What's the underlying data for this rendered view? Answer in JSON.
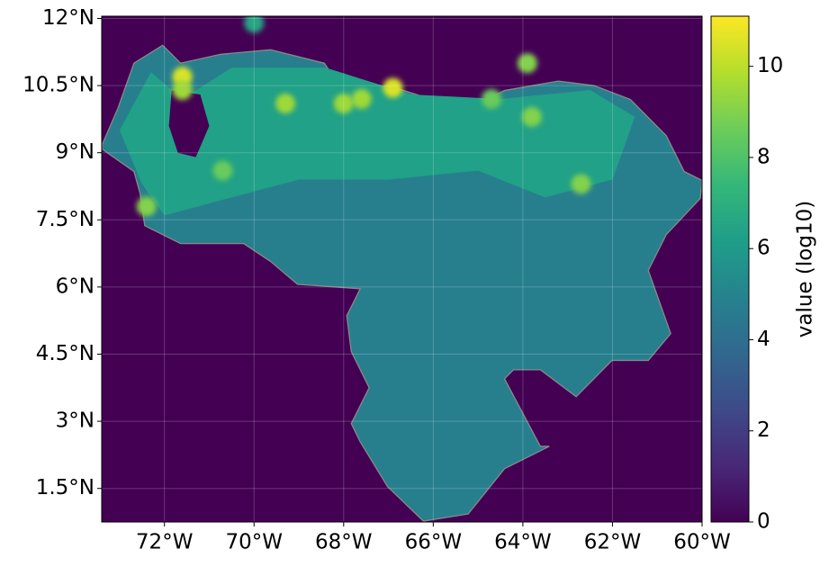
{
  "chart_data": {
    "type": "map",
    "xlim": [
      -73.4,
      -60
    ],
    "ylim": [
      0.75,
      12.05
    ],
    "xticks": [
      {
        "value": -72,
        "label": "72°W"
      },
      {
        "value": -70,
        "label": "70°W"
      },
      {
        "value": -68,
        "label": "68°W"
      },
      {
        "value": -66,
        "label": "66°W"
      },
      {
        "value": -64,
        "label": "64°W"
      },
      {
        "value": -62,
        "label": "62°W"
      },
      {
        "value": -60,
        "label": "60°W"
      }
    ],
    "yticks": [
      {
        "value": 1.5,
        "label": "1.5°N"
      },
      {
        "value": 3,
        "label": "3°N"
      },
      {
        "value": 4.5,
        "label": "4.5°N"
      },
      {
        "value": 6,
        "label": "6°N"
      },
      {
        "value": 7.5,
        "label": "7.5°N"
      },
      {
        "value": 9,
        "label": "9°N"
      },
      {
        "value": 10.5,
        "label": "10.5°N"
      },
      {
        "value": 12,
        "label": "12°N"
      }
    ],
    "grid": true,
    "background_value": 0,
    "colorbar": {
      "label": "value (log10)",
      "lim": [
        0,
        11.1
      ],
      "ticks": [
        0,
        2,
        4,
        6,
        8,
        10
      ]
    },
    "regions": [
      {
        "value": 4.8,
        "points": [
          [
            -73.39,
            9.18
          ],
          [
            -73.04,
            9.99
          ],
          [
            -72.68,
            11.0
          ],
          [
            -72.04,
            11.4
          ],
          [
            -71.64,
            11.0
          ],
          [
            -70.74,
            11.2
          ],
          [
            -69.63,
            11.3
          ],
          [
            -68.43,
            11.0
          ],
          [
            -68.03,
            10.39
          ],
          [
            -67.02,
            10.5
          ],
          [
            -66.02,
            10.19
          ],
          [
            -65.22,
            9.99
          ],
          [
            -64.41,
            10.39
          ],
          [
            -63.21,
            10.6
          ],
          [
            -62.41,
            10.5
          ],
          [
            -61.6,
            10.19
          ],
          [
            -60.8,
            9.38
          ],
          [
            -60.4,
            8.58
          ],
          [
            -60.0,
            8.38
          ],
          [
            -60.04,
            7.98
          ],
          [
            -60.8,
            7.17
          ],
          [
            -61.2,
            6.37
          ],
          [
            -60.7,
            4.96
          ],
          [
            -61.2,
            4.36
          ],
          [
            -62.01,
            4.36
          ],
          [
            -62.81,
            3.55
          ],
          [
            -63.61,
            4.15
          ],
          [
            -64.21,
            4.15
          ],
          [
            -64.41,
            3.95
          ],
          [
            -63.61,
            2.44
          ],
          [
            -63.41,
            2.44
          ],
          [
            -64.41,
            1.94
          ],
          [
            -65.22,
            0.93
          ],
          [
            -66.22,
            0.77
          ],
          [
            -67.02,
            1.54
          ],
          [
            -67.63,
            2.54
          ],
          [
            -67.83,
            2.95
          ],
          [
            -67.43,
            3.75
          ],
          [
            -67.83,
            4.56
          ],
          [
            -67.93,
            5.36
          ],
          [
            -67.63,
            5.96
          ],
          [
            -69.03,
            6.06
          ],
          [
            -69.63,
            6.57
          ],
          [
            -70.23,
            6.97
          ],
          [
            -71.64,
            6.97
          ],
          [
            -72.44,
            7.37
          ],
          [
            -72.54,
            8.08
          ],
          [
            -72.68,
            8.58
          ],
          [
            -73.39,
            9.08
          ]
        ]
      },
      {
        "value": 6.3,
        "points": [
          [
            -73.0,
            9.5
          ],
          [
            -72.3,
            10.8
          ],
          [
            -71.6,
            10.2
          ],
          [
            -70.5,
            10.9
          ],
          [
            -68.4,
            10.9
          ],
          [
            -66.5,
            10.3
          ],
          [
            -64.5,
            10.2
          ],
          [
            -62.5,
            10.4
          ],
          [
            -61.5,
            9.8
          ],
          [
            -62,
            8.4
          ],
          [
            -63.5,
            8.0
          ],
          [
            -65,
            8.6
          ],
          [
            -67,
            8.4
          ],
          [
            -69,
            8.4
          ],
          [
            -70.5,
            8.0
          ],
          [
            -72,
            7.6
          ],
          [
            -72.5,
            8.3
          ]
        ]
      },
      {
        "value": 0,
        "points": [
          [
            -71.84,
            10.39
          ],
          [
            -71.2,
            10.3
          ],
          [
            -71.0,
            9.6
          ],
          [
            -71.3,
            8.9
          ],
          [
            -71.7,
            9.0
          ],
          [
            -71.9,
            9.6
          ]
        ]
      }
    ],
    "hotspots": [
      [
        -66.9,
        10.45,
        10.5
      ],
      [
        -67.6,
        10.2,
        9.5
      ],
      [
        -69.3,
        10.1,
        9.5
      ],
      [
        -71.6,
        10.7,
        10.5
      ],
      [
        -71.6,
        10.4,
        9.5
      ],
      [
        -63.8,
        9.8,
        9
      ],
      [
        -62.7,
        8.3,
        9
      ],
      [
        -72.4,
        7.8,
        9
      ],
      [
        -70.7,
        8.6,
        8.5
      ],
      [
        -64.7,
        10.2,
        8.5
      ],
      [
        -68.0,
        10.1,
        9.5
      ],
      [
        -70.0,
        11.9,
        6.5
      ],
      [
        -63.9,
        11.0,
        9
      ]
    ]
  }
}
